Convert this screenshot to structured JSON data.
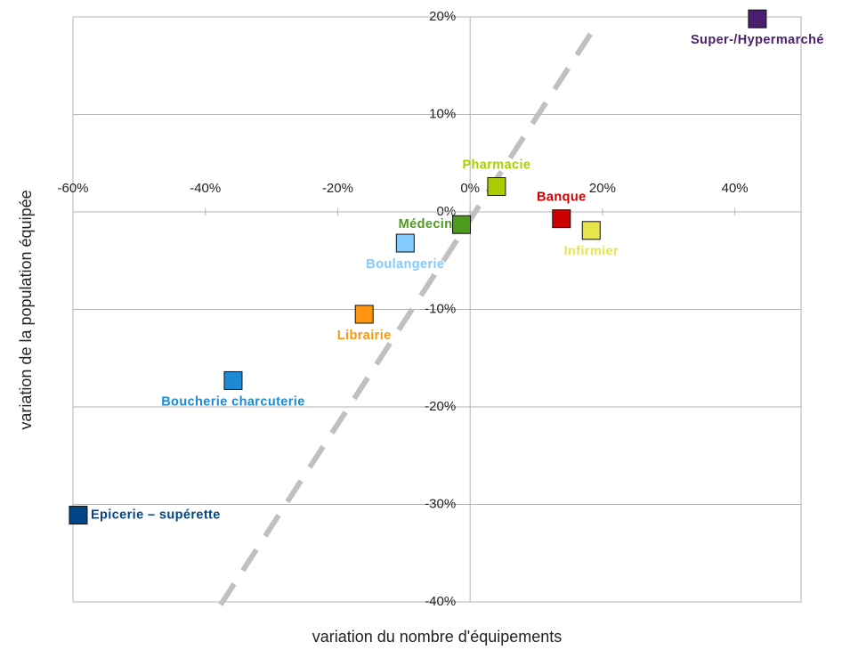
{
  "chart_data": {
    "type": "scatter",
    "x_label": "variation du nombre d'équipements",
    "y_label": "variation de la population équipée",
    "xlim": [
      -60,
      50
    ],
    "ylim": [
      -40,
      20
    ],
    "xticks": [
      {
        "value": -60,
        "label": "-60%"
      },
      {
        "value": -40,
        "label": "-40%"
      },
      {
        "value": -20,
        "label": "-20%"
      },
      {
        "value": 0,
        "label": "0%"
      },
      {
        "value": 20,
        "label": "20%"
      },
      {
        "value": 40,
        "label": "40%"
      }
    ],
    "yticks": [
      {
        "value": -40,
        "label": "-40%"
      },
      {
        "value": -30,
        "label": "-30%"
      },
      {
        "value": -20,
        "label": "-20%"
      },
      {
        "value": -10,
        "label": "-10%"
      },
      {
        "value": 0,
        "label": "0%"
      },
      {
        "value": 10,
        "label": "10%"
      },
      {
        "value": 20,
        "label": "20%"
      }
    ],
    "grid": true,
    "series": [
      {
        "name": "Super-/Hypermarché",
        "color": "#4b1f6f",
        "x": [
          43.4
        ],
        "y": [
          19.8
        ]
      },
      {
        "name": "Pharmacie",
        "color": "#aacc00",
        "x": [
          4.0
        ],
        "y": [
          2.6
        ]
      },
      {
        "name": "Banque",
        "color": "#cc0000",
        "x": [
          13.8
        ],
        "y": [
          -0.7
        ]
      },
      {
        "name": "Infirmier",
        "color": "#e6e64c",
        "x": [
          18.3
        ],
        "y": [
          -1.9
        ]
      },
      {
        "name": "Médecin",
        "color": "#4e9a1e",
        "x": [
          -1.3
        ],
        "y": [
          -1.3
        ]
      },
      {
        "name": "Boulangerie",
        "color": "#83caff",
        "x": [
          -9.8
        ],
        "y": [
          -3.2
        ]
      },
      {
        "name": "Librairie",
        "color": "#ff950e",
        "x": [
          -16.0
        ],
        "y": [
          -10.5
        ]
      },
      {
        "name": "Boucherie charcuterie",
        "color": "#1c8bd4",
        "x": [
          -35.8
        ],
        "y": [
          -17.3
        ]
      },
      {
        "name": "Epicerie – supérette",
        "color": "#004586",
        "x": [
          -59.2
        ],
        "y": [
          -31.1
        ]
      }
    ],
    "reference_line": {
      "color": "#c0c0c0",
      "x": [
        -37.7,
        18.9
      ],
      "y": [
        -40.3,
        19.0
      ]
    }
  }
}
